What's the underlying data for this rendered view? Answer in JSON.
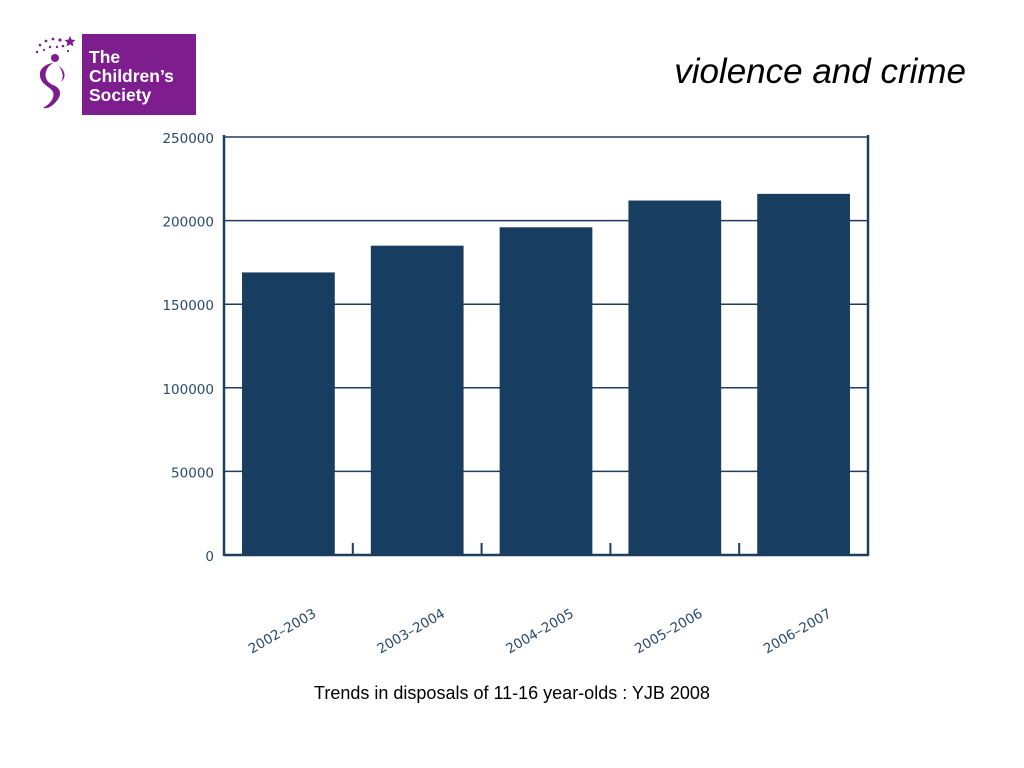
{
  "logo": {
    "lines": [
      "The",
      "Children’s",
      "Society"
    ],
    "brand_color": "#7d1d8e"
  },
  "title": "violence and crime",
  "caption": "Trends in disposals of 11-16 year-olds : YJB 2008",
  "chart_data": {
    "type": "bar",
    "categories": [
      "2002–2003",
      "2003–2004",
      "2004–2005",
      "2005–2006",
      "2006–2007"
    ],
    "values": [
      169000,
      185000,
      196000,
      212000,
      216000
    ],
    "ylim": [
      0,
      250000
    ],
    "yticks": [
      "0",
      "50000",
      "100000",
      "150000",
      "200000",
      "250000"
    ],
    "xlabel": "",
    "ylabel": "",
    "grid": true,
    "bar_color": "#173d60",
    "axis_color": "#1f3d5c",
    "tick_color": "#2a4a6e"
  }
}
